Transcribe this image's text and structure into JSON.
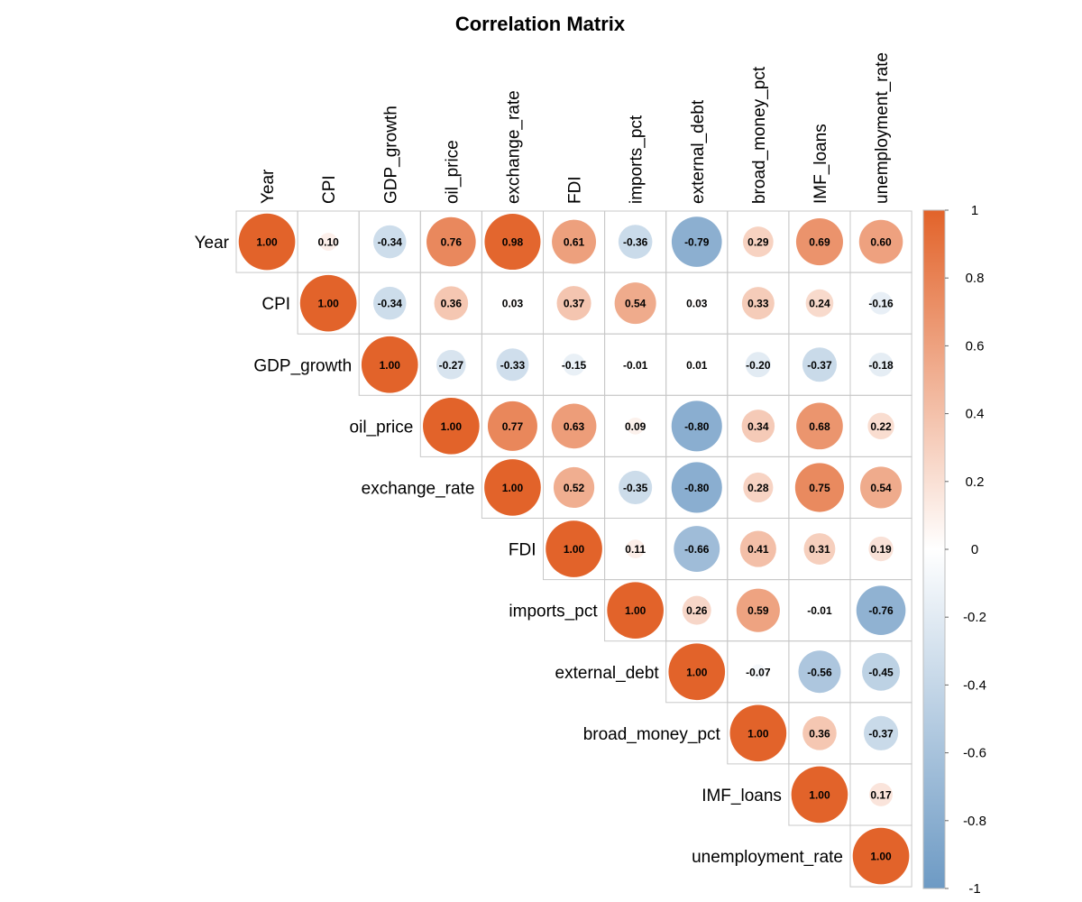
{
  "chart_data": {
    "type": "heatmap",
    "title": "Correlation Matrix",
    "variables": [
      "Year",
      "CPI",
      "GDP_growth",
      "oil_price",
      "exchange_rate",
      "FDI",
      "imports_pct",
      "external_debt",
      "broad_money_pct",
      "IMF_loans",
      "unemployment_rate"
    ],
    "matrix": [
      [
        1.0,
        0.1,
        -0.34,
        0.76,
        0.98,
        0.61,
        -0.36,
        -0.79,
        0.29,
        0.69,
        0.6
      ],
      [
        null,
        1.0,
        -0.34,
        0.36,
        0.03,
        0.37,
        0.54,
        0.03,
        0.33,
        0.24,
        -0.16
      ],
      [
        null,
        null,
        1.0,
        -0.27,
        -0.33,
        -0.15,
        -0.01,
        0.01,
        -0.2,
        -0.37,
        -0.18
      ],
      [
        null,
        null,
        null,
        1.0,
        0.77,
        0.63,
        0.09,
        -0.8,
        0.34,
        0.68,
        0.22
      ],
      [
        null,
        null,
        null,
        null,
        1.0,
        0.52,
        -0.35,
        -0.8,
        0.28,
        0.75,
        0.54
      ],
      [
        null,
        null,
        null,
        null,
        null,
        1.0,
        0.11,
        -0.66,
        0.41,
        0.31,
        0.19
      ],
      [
        null,
        null,
        null,
        null,
        null,
        null,
        1.0,
        0.26,
        0.59,
        -0.01,
        -0.76
      ],
      [
        null,
        null,
        null,
        null,
        null,
        null,
        null,
        1.0,
        -0.07,
        -0.56,
        -0.45
      ],
      [
        null,
        null,
        null,
        null,
        null,
        null,
        null,
        null,
        1.0,
        0.36,
        -0.37
      ],
      [
        null,
        null,
        null,
        null,
        null,
        null,
        null,
        null,
        null,
        1.0,
        0.17
      ],
      [
        null,
        null,
        null,
        null,
        null,
        null,
        null,
        null,
        null,
        null,
        1.0
      ]
    ],
    "display": "upper-triangle",
    "mark": "circle",
    "value_range": [
      -1,
      1
    ],
    "legend": {
      "position": "right",
      "ticks": [
        "1",
        "0.8",
        "0.6",
        "0.4",
        "0.2",
        "0",
        "-0.2",
        "-0.4",
        "-0.6",
        "-0.8",
        "-1"
      ]
    },
    "colors": {
      "positive": "#E2632A",
      "neutral": "#FFFFFF",
      "negative": "#6D9AC4",
      "grid": "#C8C8C8"
    }
  }
}
